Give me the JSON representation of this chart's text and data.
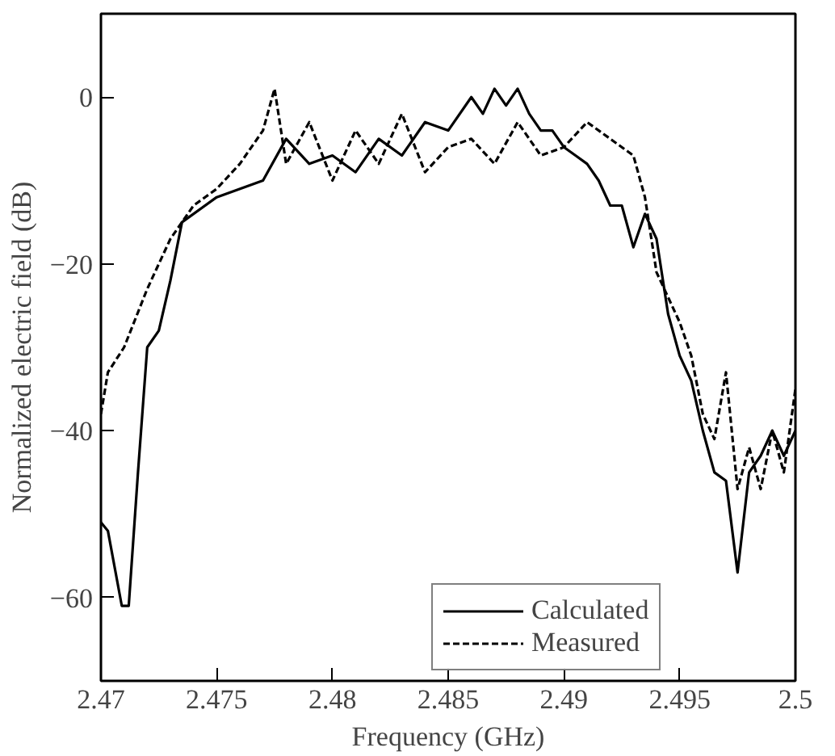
{
  "chart_data": {
    "type": "line",
    "xlabel": "Frequency (GHz)",
    "ylabel": "Normalized electric field (dB)",
    "xlim": [
      2.47,
      2.5
    ],
    "ylim": [
      -70,
      10
    ],
    "xticks": [
      2.47,
      2.475,
      2.48,
      2.485,
      2.49,
      2.495,
      2.5
    ],
    "yticks": [
      -60,
      -40,
      -20,
      0
    ],
    "grid": false,
    "legend": "bottom right",
    "series": [
      {
        "name": "Calculated",
        "color": "#000000",
        "line_style": "solid",
        "x": [
          2.47,
          2.4703,
          2.4709,
          2.4712,
          2.4716,
          2.472,
          2.4725,
          2.473,
          2.4735,
          2.475,
          2.477,
          2.478,
          2.479,
          2.48,
          2.481,
          2.482,
          2.483,
          2.484,
          2.485,
          2.486,
          2.4865,
          2.487,
          2.4875,
          2.488,
          2.4885,
          2.489,
          2.4895,
          2.49,
          2.4905,
          2.491,
          2.4915,
          2.492,
          2.4925,
          2.493,
          2.4935,
          2.494,
          2.4945,
          2.495,
          2.4955,
          2.496,
          2.4965,
          2.497,
          2.4975,
          2.498,
          2.4985,
          2.499,
          2.4995,
          2.5
        ],
        "values": [
          -51,
          -52,
          -61,
          -61,
          -45,
          -30,
          -28,
          -22,
          -15,
          -12,
          -10,
          -5,
          -8,
          -7,
          -9,
          -5,
          -7,
          -3,
          -4,
          0,
          -2,
          1,
          -1,
          1,
          -2,
          -4,
          -4,
          -6,
          -7,
          -8,
          -10,
          -13,
          -13,
          -18,
          -14,
          -17,
          -26,
          -31,
          -34,
          -40,
          -45,
          -46,
          -57,
          -45,
          -43,
          -40,
          -43,
          -40
        ]
      },
      {
        "name": "Measured",
        "color": "#000000",
        "line_style": "dashed",
        "x": [
          2.47,
          2.4703,
          2.471,
          2.472,
          2.473,
          2.474,
          2.475,
          2.476,
          2.477,
          2.4775,
          2.478,
          2.479,
          2.48,
          2.481,
          2.482,
          2.483,
          2.484,
          2.485,
          2.486,
          2.487,
          2.488,
          2.489,
          2.49,
          2.491,
          2.492,
          2.493,
          2.4935,
          2.494,
          2.4945,
          2.495,
          2.4955,
          2.496,
          2.4965,
          2.497,
          2.4975,
          2.498,
          2.4985,
          2.499,
          2.4995,
          2.5
        ],
        "values": [
          -38,
          -33,
          -30,
          -23,
          -17,
          -13,
          -11,
          -8,
          -4,
          1,
          -8,
          -3,
          -10,
          -4,
          -8,
          -2,
          -9,
          -6,
          -5,
          -8,
          -3,
          -7,
          -6,
          -3,
          -5,
          -7,
          -12,
          -21,
          -24,
          -27,
          -31,
          -38,
          -41,
          -33,
          -47,
          -42,
          -47,
          -40,
          -45,
          -35
        ]
      }
    ]
  }
}
